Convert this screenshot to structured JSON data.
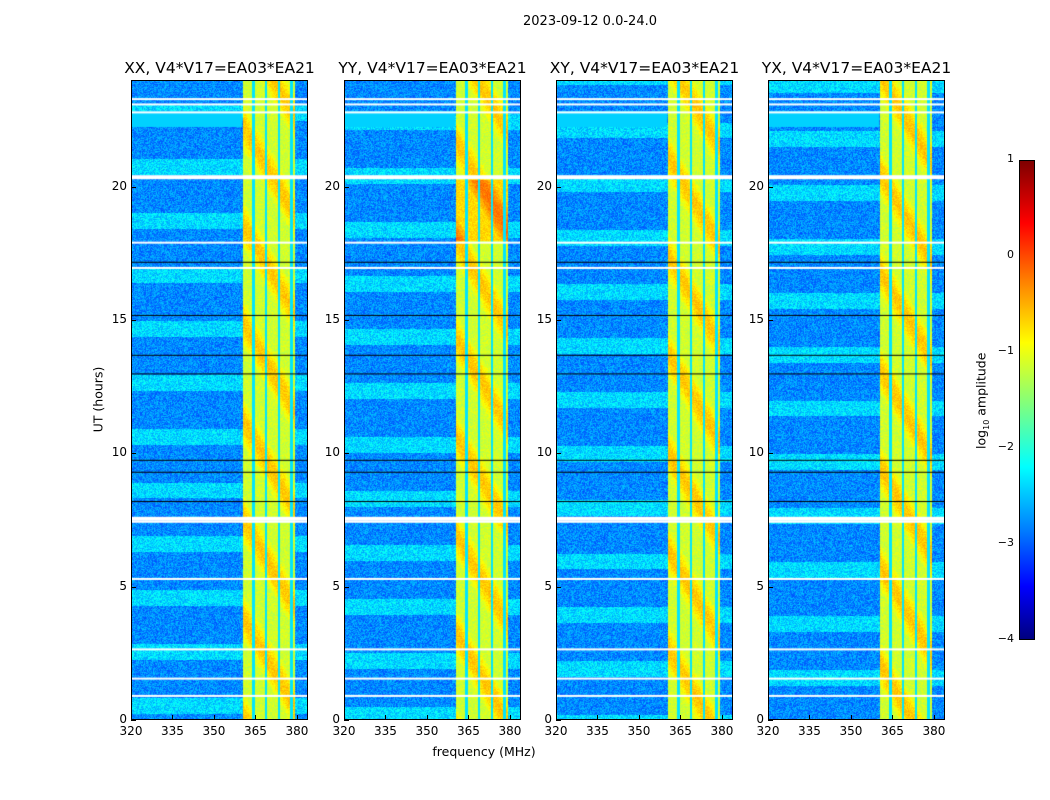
{
  "suptitle": "2023-09-12 0.0-24.0",
  "chart_data": {
    "type": "heatmap",
    "title": "2023-09-12 0.0-24.0",
    "xlabel": "frequency (MHz)",
    "ylabel": "UT (hours)",
    "xlim": [
      320,
      384
    ],
    "ylim": [
      0,
      24
    ],
    "xticks": [
      320,
      335,
      350,
      365,
      380
    ],
    "yticks": [
      0,
      5,
      10,
      15,
      20
    ],
    "panels": [
      {
        "title": "XX, V4*V17=EA03*EA21"
      },
      {
        "title": "YY, V4*V17=EA03*EA21"
      },
      {
        "title": "XY, V4*V17=EA03*EA21"
      },
      {
        "title": "YX, V4*V17=EA03*EA21"
      }
    ],
    "bright_band_mhz": [
      360.5,
      379.5
    ],
    "band_gaps_mhz": [
      364.2,
      368.8,
      373.6,
      378.2
    ],
    "flagged_hours_white": [
      23.3,
      23.1,
      22.8,
      20.4,
      17.9,
      16.95,
      7.55,
      7.4,
      5.25,
      2.6,
      1.5,
      0.85
    ],
    "flagged_hours_black": [
      13.7,
      13.0,
      9.75,
      9.3,
      17.2,
      15.2,
      8.2
    ],
    "colorbar": {
      "label_main": "log",
      "label_sub": "10",
      "label_rest": " amplitude",
      "range": [
        -4,
        1
      ],
      "ticks": [
        "1",
        "0",
        "−1",
        "−2",
        "−3",
        "−4"
      ],
      "colormap": "jet"
    }
  }
}
